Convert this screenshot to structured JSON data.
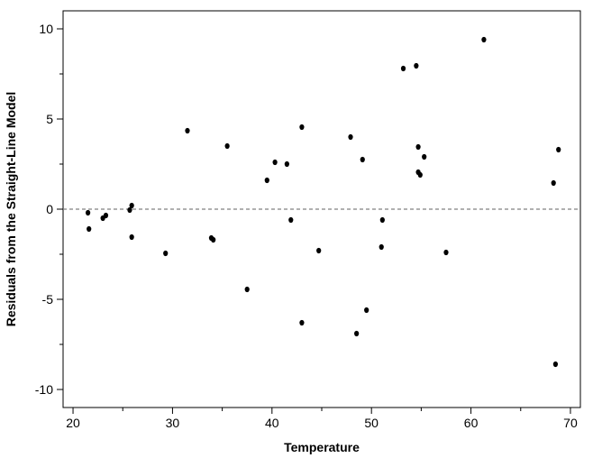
{
  "chart_data": {
    "type": "scatter",
    "title": "",
    "xlabel": "Temperature",
    "ylabel": "Residuals from the Straight-Line Model",
    "xlim": [
      19,
      71
    ],
    "ylim": [
      -11,
      11
    ],
    "x_ticks": [
      20,
      30,
      40,
      50,
      60,
      70
    ],
    "y_ticks": [
      -10,
      -5,
      0,
      5,
      10
    ],
    "x_tick_labels": [
      "20",
      "30",
      "40",
      "50",
      "60",
      "70"
    ],
    "y_tick_labels": [
      "-10",
      "-5",
      "0",
      "5",
      "10"
    ],
    "reference_line": {
      "y": 0,
      "style": "dashed"
    },
    "grid": false,
    "points": [
      {
        "x": 21.5,
        "y": -0.2
      },
      {
        "x": 21.6,
        "y": -1.1
      },
      {
        "x": 23.0,
        "y": -0.5
      },
      {
        "x": 23.3,
        "y": -0.35
      },
      {
        "x": 25.7,
        "y": -0.05
      },
      {
        "x": 25.9,
        "y": 0.2
      },
      {
        "x": 25.9,
        "y": -1.55
      },
      {
        "x": 29.3,
        "y": -2.45
      },
      {
        "x": 31.5,
        "y": 4.35
      },
      {
        "x": 33.9,
        "y": -1.6
      },
      {
        "x": 34.1,
        "y": -1.7
      },
      {
        "x": 35.5,
        "y": 3.5
      },
      {
        "x": 37.5,
        "y": -4.45
      },
      {
        "x": 39.5,
        "y": 1.6
      },
      {
        "x": 40.3,
        "y": 2.6
      },
      {
        "x": 41.5,
        "y": 2.5
      },
      {
        "x": 41.9,
        "y": -0.6
      },
      {
        "x": 43.0,
        "y": 4.55
      },
      {
        "x": 43.0,
        "y": -6.3
      },
      {
        "x": 44.7,
        "y": -2.3
      },
      {
        "x": 47.9,
        "y": 4.0
      },
      {
        "x": 48.5,
        "y": -6.9
      },
      {
        "x": 49.1,
        "y": 2.75
      },
      {
        "x": 49.5,
        "y": -5.6
      },
      {
        "x": 51.0,
        "y": -2.1
      },
      {
        "x": 51.1,
        "y": -0.6
      },
      {
        "x": 53.2,
        "y": 7.8
      },
      {
        "x": 54.5,
        "y": 7.95
      },
      {
        "x": 54.7,
        "y": 3.45
      },
      {
        "x": 54.7,
        "y": 2.05
      },
      {
        "x": 54.9,
        "y": 1.9
      },
      {
        "x": 55.3,
        "y": 2.9
      },
      {
        "x": 57.5,
        "y": -2.4
      },
      {
        "x": 61.3,
        "y": 9.4
      },
      {
        "x": 68.3,
        "y": 1.45
      },
      {
        "x": 68.5,
        "y": -8.6
      },
      {
        "x": 68.8,
        "y": 3.3
      }
    ]
  },
  "colors": {
    "point": "#000000",
    "axis": "#000000",
    "reference_line": "#808080",
    "background": "#ffffff"
  }
}
